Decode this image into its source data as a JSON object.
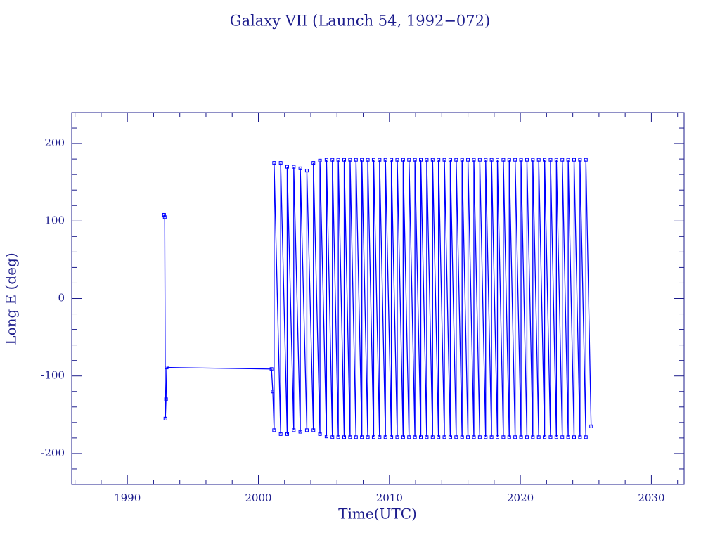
{
  "chart_data": {
    "type": "line",
    "title": "Galaxy VII (Launch 54, 1992−072)",
    "x_label": "Time(UTC)",
    "y_label": "Long E (deg)",
    "axis_color": "#1c1c8c",
    "xlim": [
      1985.75,
      2032.5
    ],
    "ylim": [
      -240,
      240
    ],
    "xticks": [
      1990,
      2000,
      2010,
      2020,
      2030
    ],
    "xminorticks": [
      1986,
      1988,
      1992,
      1994,
      1996,
      1998,
      2002,
      2004,
      2006,
      2008,
      2012,
      2014,
      2016,
      2018,
      2022,
      2024,
      2026,
      2028,
      2032
    ],
    "yticks": [
      -200,
      -100,
      0,
      100,
      200
    ],
    "yminorticks": [
      -220,
      -180,
      -160,
      -140,
      -120,
      -80,
      -60,
      -40,
      -20,
      20,
      40,
      60,
      80,
      120,
      140,
      160,
      180,
      220
    ],
    "series": [
      {
        "name": "Galaxy VII",
        "color": "#0000ff",
        "x": [
          1992.8,
          1992.85,
          1992.9,
          1992.95,
          1993.0,
          2001.0,
          2001.1,
          2001.2,
          2001.2,
          2001.7,
          2001.7,
          2002.2,
          2002.2,
          2002.7,
          2002.7,
          2003.2,
          2003.2,
          2003.7,
          2003.7,
          2004.2,
          2004.2,
          2004.7,
          2004.7,
          2005.2,
          2005.2,
          2005.65,
          2005.65,
          2006.1,
          2006.1,
          2006.55,
          2006.55,
          2007.0,
          2007.0,
          2007.45,
          2007.45,
          2007.9,
          2007.9,
          2008.35,
          2008.35,
          2008.8,
          2008.8,
          2009.25,
          2009.25,
          2009.7,
          2009.7,
          2010.15,
          2010.15,
          2010.6,
          2010.6,
          2011.05,
          2011.05,
          2011.5,
          2011.5,
          2011.95,
          2011.95,
          2012.4,
          2012.4,
          2012.85,
          2012.85,
          2013.3,
          2013.3,
          2013.75,
          2013.75,
          2014.2,
          2014.2,
          2014.65,
          2014.65,
          2015.1,
          2015.1,
          2015.55,
          2015.55,
          2016.0,
          2016.0,
          2016.45,
          2016.45,
          2016.9,
          2016.9,
          2017.35,
          2017.35,
          2017.8,
          2017.8,
          2018.25,
          2018.25,
          2018.7,
          2018.7,
          2019.15,
          2019.15,
          2019.6,
          2019.6,
          2020.05,
          2020.05,
          2020.5,
          2020.5,
          2020.95,
          2020.95,
          2021.4,
          2021.4,
          2021.85,
          2021.85,
          2022.3,
          2022.3,
          2022.75,
          2022.75,
          2023.2,
          2023.2,
          2023.65,
          2023.65,
          2024.1,
          2024.1,
          2024.55,
          2024.55,
          2025.0,
          2025.0,
          2025.4
        ],
        "values": [
          108,
          105,
          -155,
          -130,
          -89,
          -91,
          -120,
          -170,
          175,
          -175,
          175,
          -175,
          170,
          -170,
          170,
          -172,
          168,
          -170,
          165,
          -170,
          175,
          -175,
          178,
          -178,
          179,
          -179,
          179,
          -179,
          179,
          -179,
          179,
          -179,
          179,
          -179,
          179,
          -179,
          179,
          -179,
          179,
          -179,
          179,
          -179,
          179,
          -179,
          179,
          -179,
          179,
          -179,
          179,
          -179,
          179,
          -179,
          179,
          -179,
          179,
          -179,
          179,
          -179,
          179,
          -179,
          179,
          -179,
          179,
          -179,
          179,
          -179,
          179,
          -179,
          179,
          -179,
          179,
          -179,
          179,
          -179,
          179,
          -179,
          179,
          -179,
          179,
          -179,
          179,
          -179,
          179,
          -179,
          179,
          -179,
          179,
          -179,
          179,
          -179,
          179,
          -179,
          179,
          -179,
          179,
          -179,
          179,
          -179,
          179,
          -179,
          179,
          -179,
          179,
          -179,
          179,
          -179,
          179,
          -179,
          179,
          -179,
          179,
          -179,
          179,
          -165
        ]
      }
    ]
  }
}
